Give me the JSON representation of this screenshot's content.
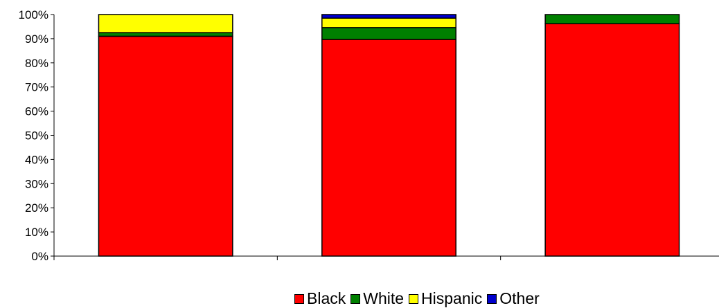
{
  "chart_data": {
    "type": "bar",
    "stacked": true,
    "percent": true,
    "categories": [
      "",
      "",
      ""
    ],
    "series": [
      {
        "name": "Black",
        "color": "#ff0000",
        "values": [
          91,
          89.7,
          96.2
        ]
      },
      {
        "name": "White",
        "color": "#008000",
        "values": [
          1.5,
          4.9,
          3.8
        ]
      },
      {
        "name": "Hispanic",
        "color": "#ffff00",
        "values": [
          7.5,
          3.9,
          0
        ]
      },
      {
        "name": "Other",
        "color": "#0000cc",
        "values": [
          0,
          1.5,
          0
        ]
      }
    ],
    "y_ticks": [
      "0%",
      "10%",
      "20%",
      "30%",
      "40%",
      "50%",
      "60%",
      "70%",
      "80%",
      "90%",
      "100%"
    ],
    "ylim": [
      0,
      100
    ],
    "title": "",
    "xlabel": "",
    "ylabel": "",
    "grid": false,
    "legend_position": "bottom"
  }
}
